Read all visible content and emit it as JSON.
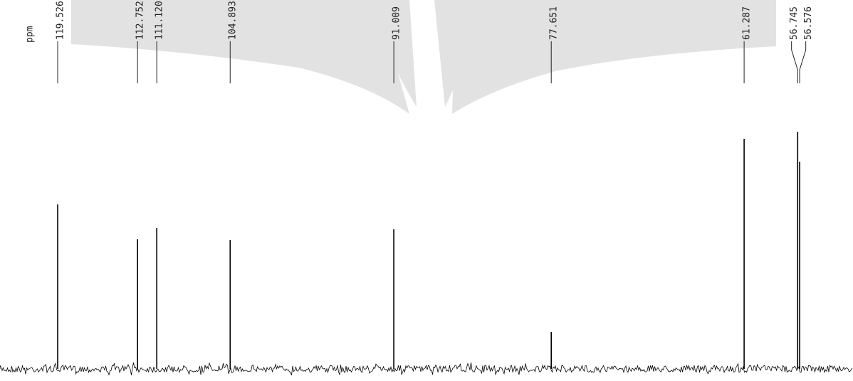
{
  "chart_data": {
    "type": "spectrum",
    "x_label": "ppm",
    "x": [
      {
        "value": 119.526,
        "label": "119.526"
      },
      {
        "value": 112.752,
        "label": "112.752"
      },
      {
        "value": 111.12,
        "label": "111.120"
      },
      {
        "value": 104.893,
        "label": "104.893"
      },
      {
        "value": 91.009,
        "label": "91.009"
      },
      {
        "value": 77.651,
        "label": "77.651"
      },
      {
        "value": 61.287,
        "label": "61.287"
      },
      {
        "value": 56.745,
        "label": "56.745"
      },
      {
        "value": 56.576,
        "label": "56.576"
      }
    ],
    "values": [
      231,
      182,
      198,
      181,
      196,
      52,
      323,
      333,
      291
    ],
    "xlim": [
      124.42,
      52.05
    ],
    "ylim": [
      0,
      500
    ],
    "color": "#000000"
  }
}
